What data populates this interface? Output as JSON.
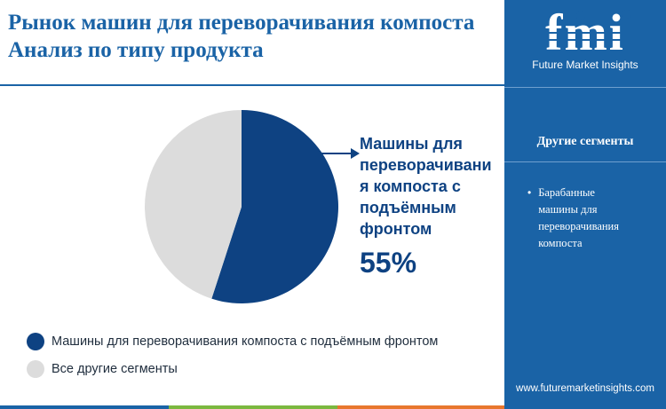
{
  "header": {
    "title": "Рынок машин для переворачивания компоста Анализ по типу продукта"
  },
  "chart_data": {
    "type": "pie",
    "slices": [
      {
        "name": "Машины для переворачивания компоста с подъёмным фронтом",
        "value": 55,
        "color": "#0e4282"
      },
      {
        "name": "Все другие сегменты",
        "value": 45,
        "color": "#dcdcdc"
      }
    ],
    "callout": {
      "label": "Машины для переворачивани я компоста с подъёмным фронтом",
      "value": "55%"
    },
    "legend": {
      "position": "bottom-left",
      "items": [
        {
          "label": "Машины для переворачивания компоста с подъёмным фронтом",
          "color": "#0e4282"
        },
        {
          "label": "Все другие сегменты",
          "color": "#dcdcdc"
        }
      ]
    }
  },
  "sidebar": {
    "logo": {
      "text": "fmi",
      "subtitle": "Future Market Insights"
    },
    "heading": "Другие сегменты",
    "items": [
      {
        "label": "Барабанные машины для переворачивания компоста"
      }
    ],
    "url": "www.futuremarketinsights.com"
  },
  "colors": {
    "brand_blue": "#1a63a6",
    "slice_dark": "#0e4282",
    "slice_light": "#dcdcdc",
    "bottom_bar": [
      "#1a63a6",
      "#7bb83f",
      "#e8772e",
      "#1a63a6"
    ]
  }
}
